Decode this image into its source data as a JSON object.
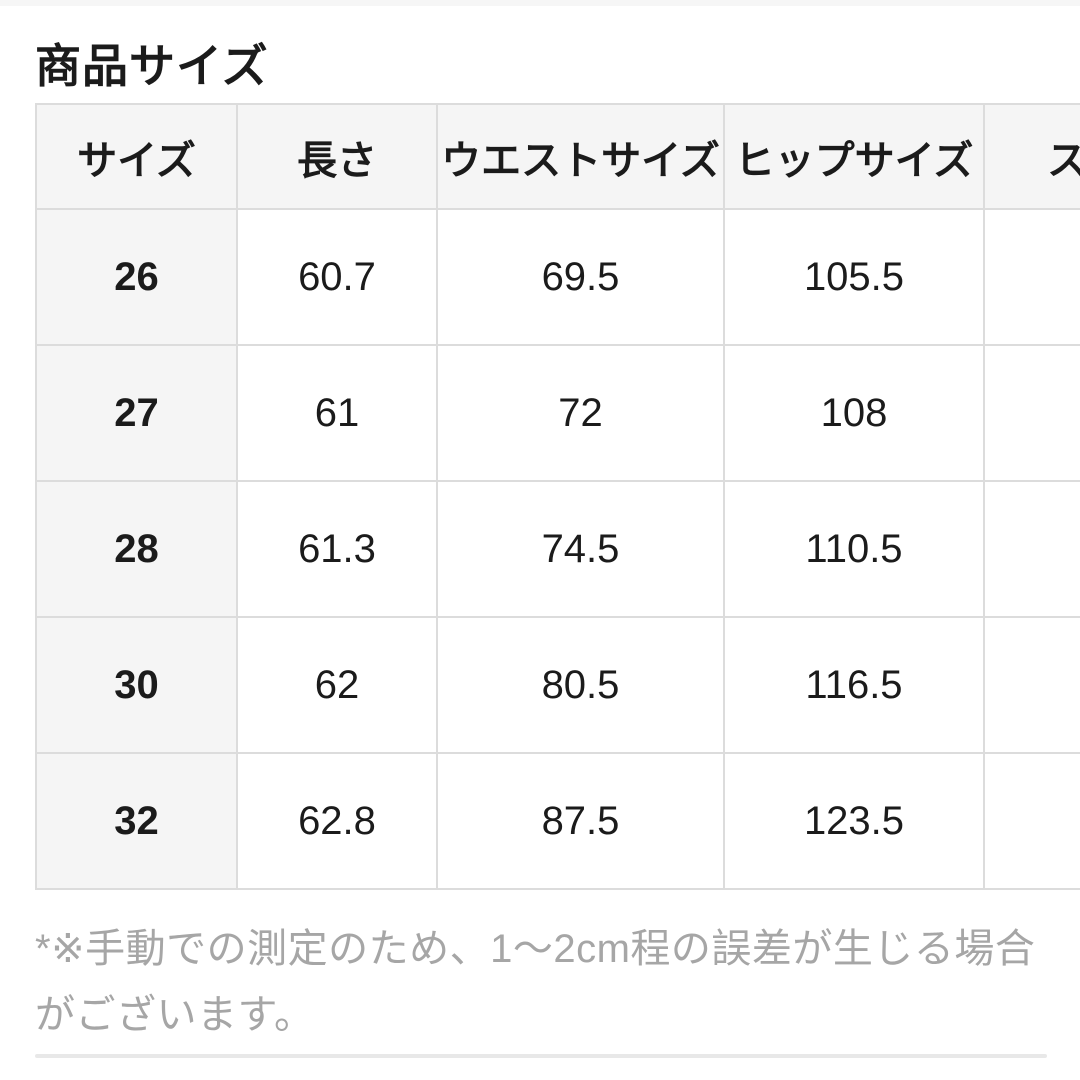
{
  "page": {
    "title": "商品サイズ",
    "note": "*※手動での測定のため、1〜2cm程の誤差が生じる場合がございます。"
  },
  "colors": {
    "header_bg": "#f5f5f5",
    "border": "#dcdcdc",
    "text": "#1b1b1b",
    "note_text": "#a6a6a6",
    "divider": "#e8e8e8"
  },
  "table": {
    "headers": [
      "サイズ",
      "長さ",
      "ウエストサイズ",
      "ヒップサイズ",
      "ス"
    ],
    "rows": [
      {
        "size": "26",
        "values": [
          "60.7",
          "69.5",
          "105.5",
          ""
        ]
      },
      {
        "size": "27",
        "values": [
          "61",
          "72",
          "108",
          ""
        ]
      },
      {
        "size": "28",
        "values": [
          "61.3",
          "74.5",
          "110.5",
          ""
        ]
      },
      {
        "size": "30",
        "values": [
          "62",
          "80.5",
          "116.5",
          ""
        ]
      },
      {
        "size": "32",
        "values": [
          "62.8",
          "87.5",
          "123.5",
          ""
        ]
      }
    ]
  }
}
